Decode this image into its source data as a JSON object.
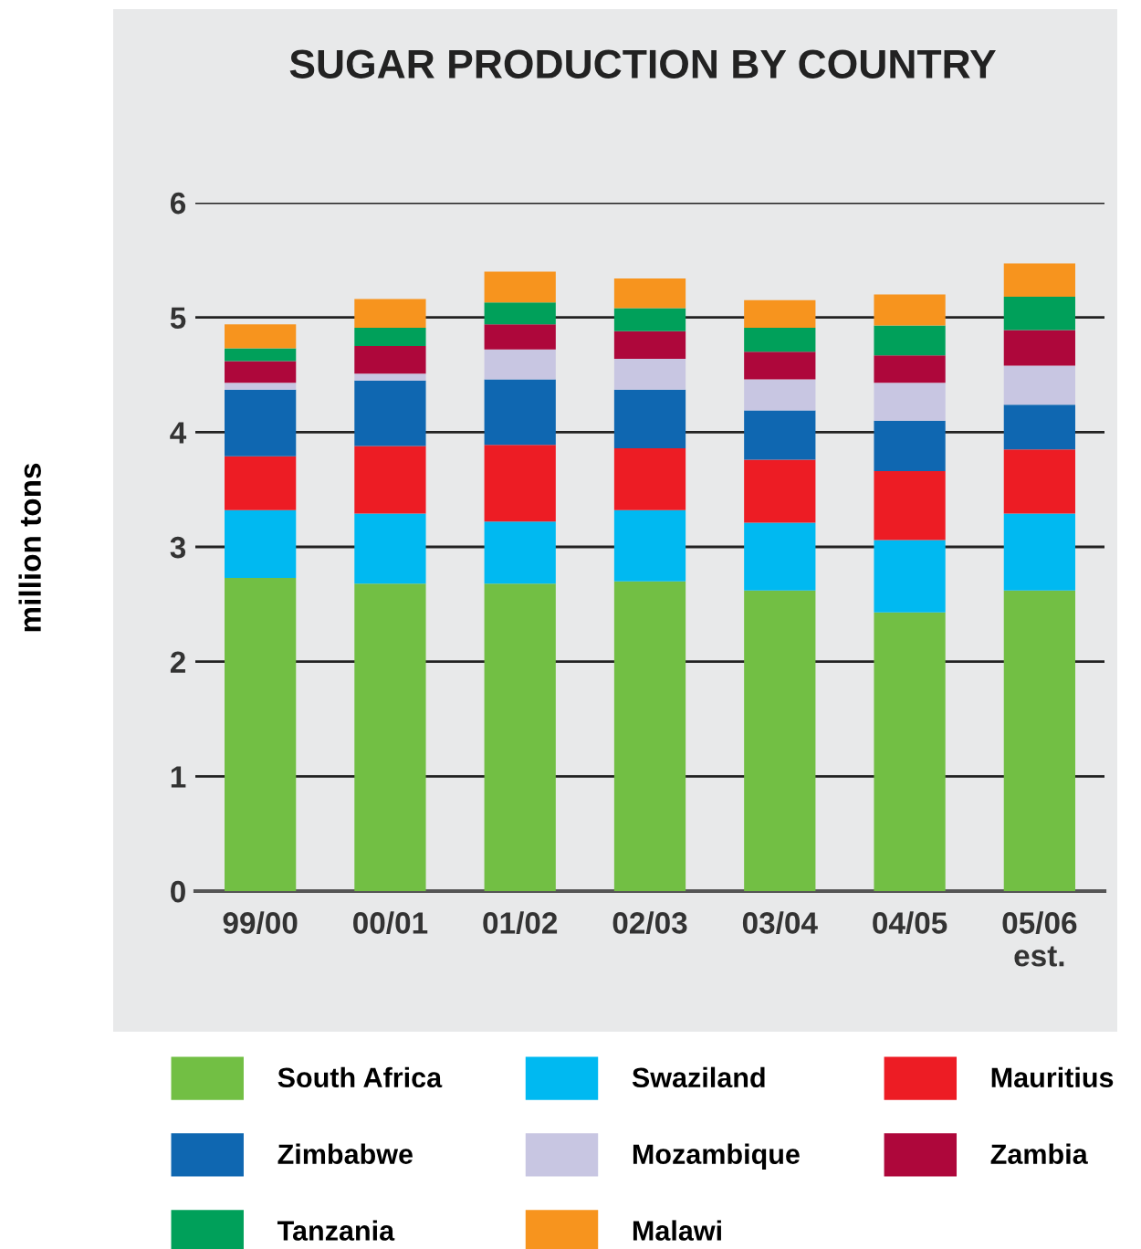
{
  "chart_data": {
    "type": "bar",
    "title": "SUGAR PRODUCTION BY COUNTRY",
    "ylabel": "million tons",
    "categories": [
      "99/00",
      "00/01",
      "01/02",
      "02/03",
      "03/04",
      "04/05",
      "05/06\nest."
    ],
    "stacked": true,
    "ylim": [
      0,
      6
    ],
    "yticks": [
      0,
      1,
      2,
      3,
      4,
      5,
      6
    ],
    "grid": "y",
    "legend": "bottom",
    "series": [
      {
        "name": "South Africa",
        "color": "#72bf44",
        "values": [
          2.73,
          2.68,
          2.68,
          2.7,
          2.62,
          2.43,
          2.62
        ]
      },
      {
        "name": "Swaziland",
        "color": "#00b9f1",
        "values": [
          0.59,
          0.61,
          0.54,
          0.62,
          0.59,
          0.63,
          0.67
        ]
      },
      {
        "name": "Mauritius",
        "color": "#ed1c24",
        "values": [
          0.47,
          0.59,
          0.67,
          0.54,
          0.55,
          0.6,
          0.56
        ]
      },
      {
        "name": "Zimbabwe",
        "color": "#0f67b1",
        "values": [
          0.58,
          0.57,
          0.57,
          0.51,
          0.43,
          0.44,
          0.39
        ]
      },
      {
        "name": "Mozambique",
        "color": "#c8c6e2",
        "values": [
          0.06,
          0.06,
          0.26,
          0.27,
          0.27,
          0.33,
          0.34
        ]
      },
      {
        "name": "Zambia",
        "color": "#ae073b",
        "values": [
          0.19,
          0.24,
          0.22,
          0.24,
          0.24,
          0.24,
          0.31
        ]
      },
      {
        "name": "Tanzania",
        "color": "#00a05a",
        "values": [
          0.11,
          0.16,
          0.19,
          0.2,
          0.21,
          0.26,
          0.29
        ]
      },
      {
        "name": "Malawi",
        "color": "#f7941e",
        "values": [
          0.21,
          0.25,
          0.27,
          0.26,
          0.24,
          0.27,
          0.29
        ]
      }
    ]
  }
}
